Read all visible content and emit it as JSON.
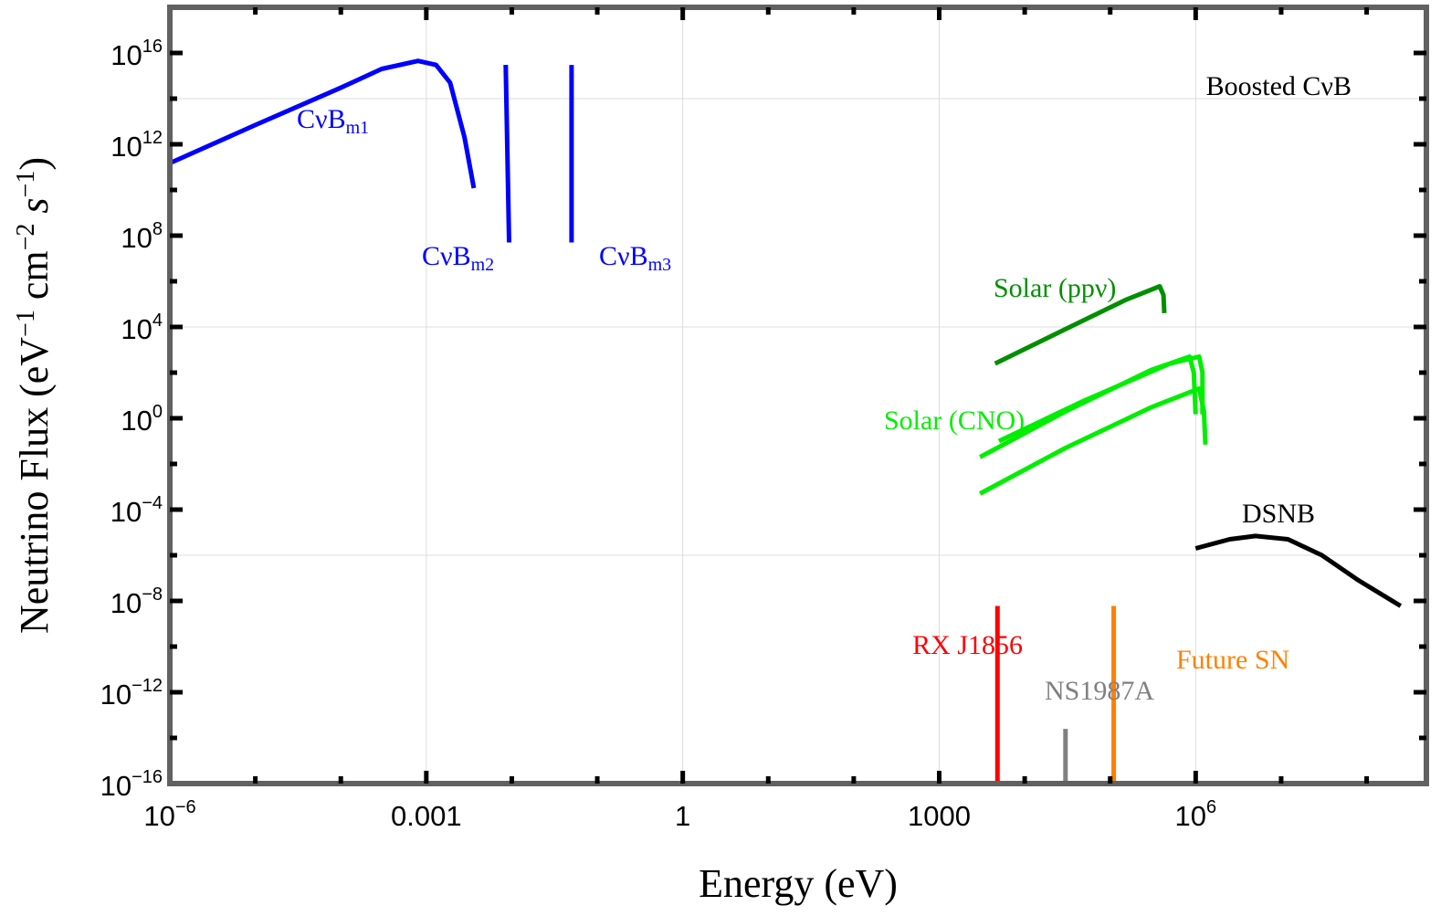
{
  "chart_data": {
    "type": "line",
    "title": "",
    "xlabel": "Energy (eV)",
    "ylabel": {
      "main": "Neutrino Flux (eV",
      "sup1": "−1",
      "mid1": " cm",
      "sup2": "−2",
      "mid2": " s",
      "sup3": "−1",
      "end": ")"
    },
    "x_scale": "log",
    "y_scale": "log",
    "xlim": [
      1e-06,
      500000000.0
    ],
    "ylim": [
      1e-16,
      1e+18
    ],
    "x_ticks": [
      {
        "value": 1e-06,
        "base": "10",
        "exp": "−6"
      },
      {
        "value": 0.001,
        "base": "0.001",
        "exp": ""
      },
      {
        "value": 1,
        "base": "1",
        "exp": ""
      },
      {
        "value": 1000,
        "base": "1000",
        "exp": ""
      },
      {
        "value": 1000000.0,
        "base": "10",
        "exp": "6"
      }
    ],
    "y_ticks": [
      {
        "value": 1e-16,
        "base": "10",
        "exp": "−16"
      },
      {
        "value": 1e-12,
        "base": "10",
        "exp": "−12"
      },
      {
        "value": 1e-08,
        "base": "10",
        "exp": "−8"
      },
      {
        "value": 0.0001,
        "base": "10",
        "exp": "−4"
      },
      {
        "value": 1,
        "base": "10",
        "exp": "0"
      },
      {
        "value": 10000.0,
        "base": "10",
        "exp": "4"
      },
      {
        "value": 100000000.0,
        "base": "10",
        "exp": "8"
      },
      {
        "value": 1000000000000.0,
        "base": "10",
        "exp": "12"
      },
      {
        "value": 1e+16,
        "base": "10",
        "exp": "16"
      }
    ],
    "grid": true,
    "series": [
      {
        "id": "cvb-m1",
        "color": "#0000ff",
        "label": {
          "main": "CνB",
          "sub": "m1"
        },
        "x": [
          1e-06,
          1e-05,
          0.0001,
          0.0003,
          0.0008,
          0.0013,
          0.0019,
          0.0028,
          0.0036
        ],
        "y": [
          150000000000.0,
          7000000000000.0,
          300000000000000.0,
          2000000000000000.0,
          4500000000000000.0,
          3000000000000000.0,
          500000000000000.0,
          2000000000000.0,
          12000000000.0
        ]
      },
      {
        "id": "cvb-m2",
        "color": "#0000ff",
        "label": {
          "main": "CνB",
          "sub": "m2"
        },
        "x": [
          0.0085,
          0.0093
        ],
        "y": [
          3000000000000000.0,
          50000000.0
        ]
      },
      {
        "id": "cvb-m3",
        "color": "#0000ff",
        "label": {
          "main": "CνB",
          "sub": "m3"
        },
        "x": [
          0.05,
          0.05
        ],
        "y": [
          3000000000000000.0,
          50000000.0
        ]
      },
      {
        "id": "solar-pp",
        "color": "#008f00",
        "label": {
          "main": "Solar (ppν)",
          "sub": ""
        },
        "x": [
          4500,
          30000.0,
          150000.0,
          380000.0,
          420000.0,
          430000.0
        ],
        "y": [
          250.0,
          8000.0,
          150000.0,
          600000.0,
          250000.0,
          40000.0
        ]
      },
      {
        "id": "solar-cno-1",
        "color": "#00ee00",
        "label": {
          "main": "Solar (CNO)",
          "sub": ""
        },
        "x": [
          5000,
          50000.0,
          500000.0,
          1100000.0,
          1200000.0,
          1200000.0
        ],
        "y": [
          0.1,
          6,
          250.0,
          500.0,
          100.0,
          1.5
        ]
      },
      {
        "id": "solar-cno-2",
        "color": "#00ee00",
        "label": {
          "main": "",
          "sub": ""
        },
        "x": [
          3000,
          30000.0,
          300000.0,
          850000.0,
          950000.0,
          1000000.0
        ],
        "y": [
          0.02,
          2,
          130.0,
          500.0,
          100.0,
          1.5
        ]
      },
      {
        "id": "solar-cno-3",
        "color": "#00ee00",
        "label": {
          "main": "",
          "sub": ""
        },
        "x": [
          3000,
          30000.0,
          300000.0,
          1100000.0,
          1250000.0,
          1300000.0
        ],
        "y": [
          0.0005,
          0.05,
          3,
          20.0,
          2,
          0.07
        ]
      },
      {
        "id": "dsnb",
        "color": "#000000",
        "label": {
          "main": "DSNB",
          "sub": ""
        },
        "x": [
          1000000.0,
          2500000.0,
          5000000.0,
          12000000.0,
          30000000.0,
          80000000.0,
          250000000.0
        ],
        "y": [
          2e-06,
          5e-06,
          7e-06,
          5e-06,
          1e-06,
          8e-08,
          6e-09
        ]
      },
      {
        "id": "rx-j1856",
        "color": "#ff0000",
        "label": {
          "main": "RX J1856",
          "sub": ""
        },
        "x": [
          4800,
          4800
        ],
        "y": [
          6e-09,
          1e-16
        ]
      },
      {
        "id": "ns1987a",
        "color": "#808080",
        "label": {
          "main": "NS1987A",
          "sub": ""
        },
        "x": [
          30000,
          30000
        ],
        "y": [
          2.5e-14,
          1e-16
        ]
      },
      {
        "id": "future-sn",
        "color": "#ff8000",
        "label": {
          "main": "Future SN",
          "sub": ""
        },
        "x": [
          110000.0,
          110000.0
        ],
        "y": [
          6e-09,
          1e-16
        ]
      }
    ],
    "annotations": [
      {
        "id": "boosted-cvb",
        "text": "Boosted CνB",
        "color": "#000000"
      }
    ]
  }
}
